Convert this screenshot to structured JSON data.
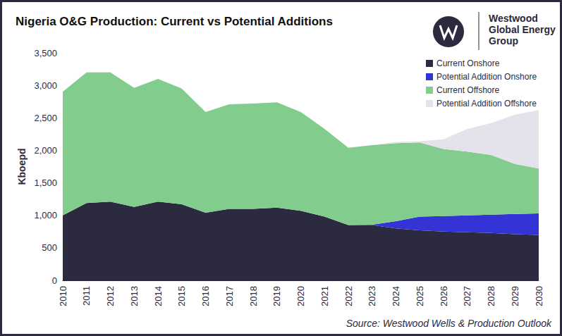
{
  "chart_data": {
    "type": "area",
    "title": "Nigeria O&G Production: Current vs Potential Additions",
    "brand": [
      "Westwood",
      "Global Energy",
      "Group"
    ],
    "source": "Source: Westwood Wells & Production Outlook",
    "y_label": "Kboepd",
    "stacked": true,
    "grid": false,
    "legend": "top-right",
    "categories": [
      "2010",
      "2011",
      "2012",
      "2013",
      "2014",
      "2015",
      "2016",
      "2017",
      "2018",
      "2019",
      "2020",
      "2021",
      "2022",
      "2023",
      "2024",
      "2025",
      "2026",
      "2027",
      "2028",
      "2029",
      "2030"
    ],
    "series": [
      {
        "name": "Current Onshore",
        "color": "#2b2a3e",
        "values": [
          1000,
          1190,
          1210,
          1130,
          1210,
          1170,
          1040,
          1100,
          1100,
          1120,
          1070,
          980,
          850,
          850,
          800,
          770,
          750,
          740,
          730,
          710,
          700
        ]
      },
      {
        "name": "Potential Addition Onshore",
        "color": "#3434d6",
        "values": [
          0,
          0,
          0,
          0,
          0,
          0,
          0,
          0,
          0,
          0,
          0,
          0,
          0,
          5,
          110,
          210,
          240,
          260,
          280,
          310,
          330
        ]
      },
      {
        "name": "Current Offshore",
        "color": "#82cd8e",
        "values": [
          1900,
          2010,
          1990,
          1830,
          1890,
          1780,
          1550,
          1610,
          1620,
          1620,
          1520,
          1350,
          1190,
          1225,
          1200,
          1140,
          1030,
          980,
          920,
          770,
          690
        ]
      },
      {
        "name": "Potential Addition Offshore",
        "color": "#e4e2ea",
        "values": [
          0,
          0,
          0,
          0,
          0,
          0,
          0,
          0,
          0,
          0,
          0,
          0,
          0,
          0,
          20,
          20,
          150,
          350,
          490,
          760,
          900
        ]
      }
    ],
    "ylim": [
      0,
      3500
    ],
    "yticks": [
      0,
      500,
      1000,
      1500,
      2000,
      2500,
      3000,
      3500
    ]
  }
}
